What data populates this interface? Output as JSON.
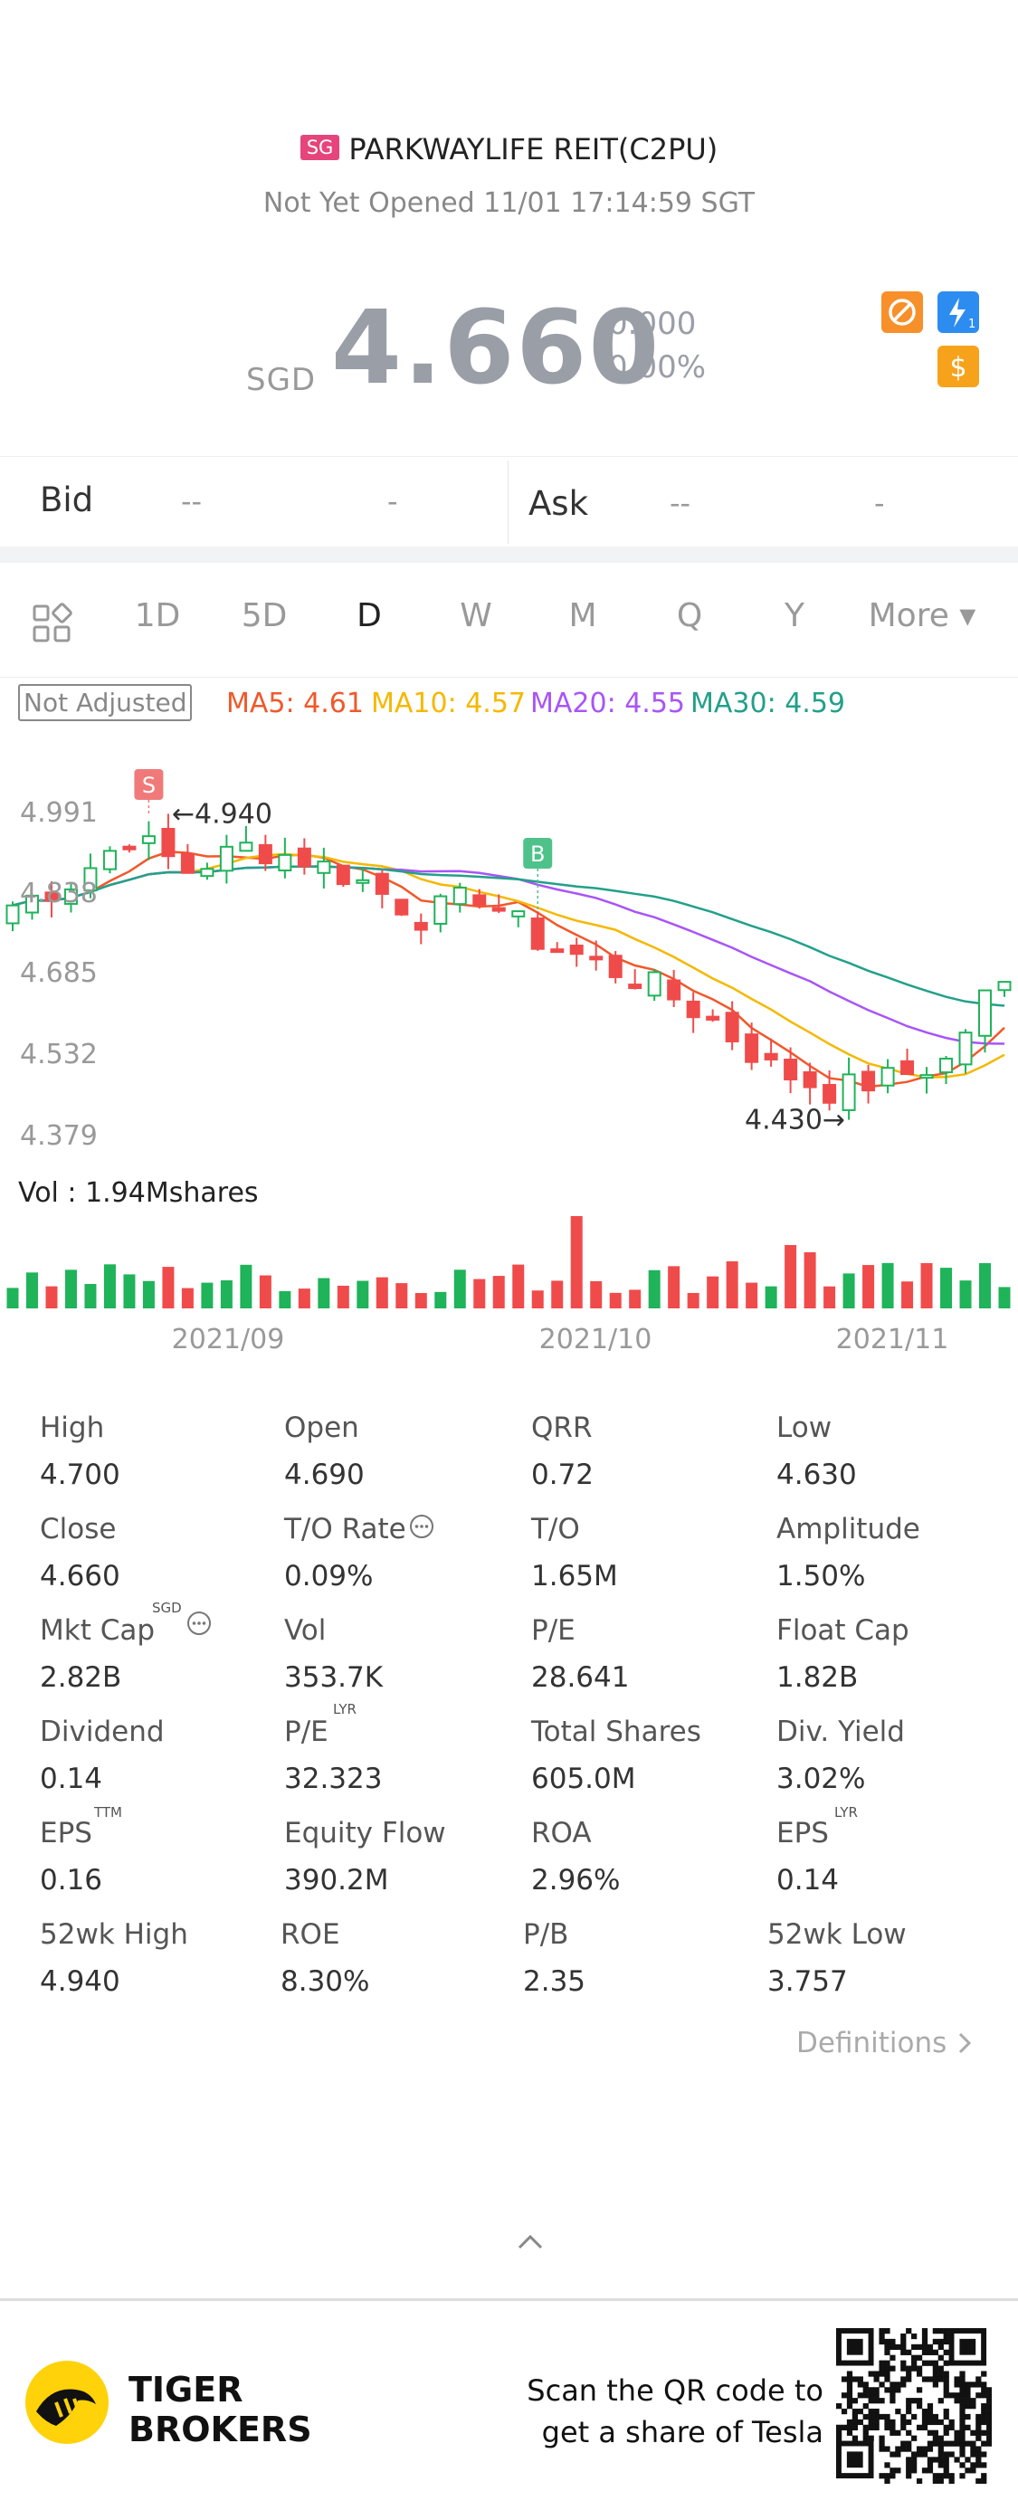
{
  "header": {
    "market_badge": "SG",
    "title": "PARKWAYLIFE REIT(C2PU)",
    "status": "Not Yet Opened 11/01 17:14:59 SGT",
    "currency": "SGD",
    "price": "4.660",
    "change": "0.000",
    "change_pct": "0.00%",
    "icons": [
      "no-short-icon",
      "lightning-icon",
      "dollar-icon"
    ],
    "icon_lightning_badge": "1",
    "icon_dollar_glyph": "$"
  },
  "quote": {
    "bid_label": "Bid",
    "bid_price": "--",
    "bid_size": "-",
    "ask_label": "Ask",
    "ask_price": "--",
    "ask_size": "-"
  },
  "periods": [
    "1D",
    "5D",
    "D",
    "W",
    "M",
    "Q",
    "Y",
    "More ▾"
  ],
  "active_period": "D",
  "indicators": {
    "adjust_label": "Not Adjusted",
    "ma5": "MA5: 4.61",
    "ma10": "MA10: 4.57",
    "ma20": "MA20: 4.55",
    "ma30": "MA30: 4.59",
    "colors": {
      "ma5": "#f0582a",
      "ma10": "#f5b800",
      "ma20": "#a855f7",
      "ma30": "#22a08a"
    }
  },
  "chart_data": {
    "type": "candlestick",
    "y_ticks": [
      "4.991",
      "4.838",
      "4.685",
      "4.532",
      "4.379"
    ],
    "ylim": [
      4.379,
      4.991
    ],
    "x_ticks": [
      "2021/09",
      "2021/10",
      "2021/11"
    ],
    "high_marker": "←4.940",
    "low_marker": "4.430→",
    "sell_marker": "S",
    "buy_marker": "B",
    "volume_label": "Vol  : 1.94Mshares",
    "colors": {
      "up": "#1fb35a",
      "down": "#f04b4b"
    }
  },
  "stats": [
    {
      "label": "High",
      "value": "4.700"
    },
    {
      "label": "Open",
      "value": "4.690"
    },
    {
      "label": "QRR",
      "value": "0.72"
    },
    {
      "label": "Low",
      "value": "4.630"
    },
    {
      "label": "Close",
      "value": "4.660"
    },
    {
      "label": "T/O Rate",
      "value": "0.09%"
    },
    {
      "label": "T/O",
      "value": "1.65M"
    },
    {
      "label": "Amplitude",
      "value": "1.50%"
    },
    {
      "label": "Mkt Cap",
      "value": "2.82B"
    },
    {
      "label": "Vol",
      "value": "353.7K"
    },
    {
      "label": "P/E",
      "value": "28.641"
    },
    {
      "label": "Float Cap",
      "value": "1.82B"
    },
    {
      "label": "Dividend",
      "value": "0.14"
    },
    {
      "label": "P/E",
      "value": "32.323"
    },
    {
      "label": "Total Shares",
      "value": "605.0M"
    },
    {
      "label": "Div. Yield",
      "value": "3.02%"
    },
    {
      "label": "EPS",
      "value": "0.16"
    },
    {
      "label": "Equity Flow",
      "value": "390.2M"
    },
    {
      "label": "ROA",
      "value": "2.96%"
    },
    {
      "label": "EPS",
      "value": "0.14"
    },
    {
      "label": "52wk High",
      "value": "4.940"
    },
    {
      "label": "ROE",
      "value": "8.30%"
    },
    {
      "label": "P/B",
      "value": "2.35"
    },
    {
      "label": "52wk Low",
      "value": "3.757"
    }
  ],
  "stat_sups": {
    "mkt_cap": "SGD",
    "pe_lyr": "LYR",
    "eps_ttm": "TTM",
    "eps_lyr": "LYR"
  },
  "definitions_link": "Definitions",
  "footer": {
    "brand_line1": "TIGER",
    "brand_line2": "BROKERS",
    "promo_line1": "Scan the QR code to",
    "promo_line2": "get a share of Tesla"
  }
}
